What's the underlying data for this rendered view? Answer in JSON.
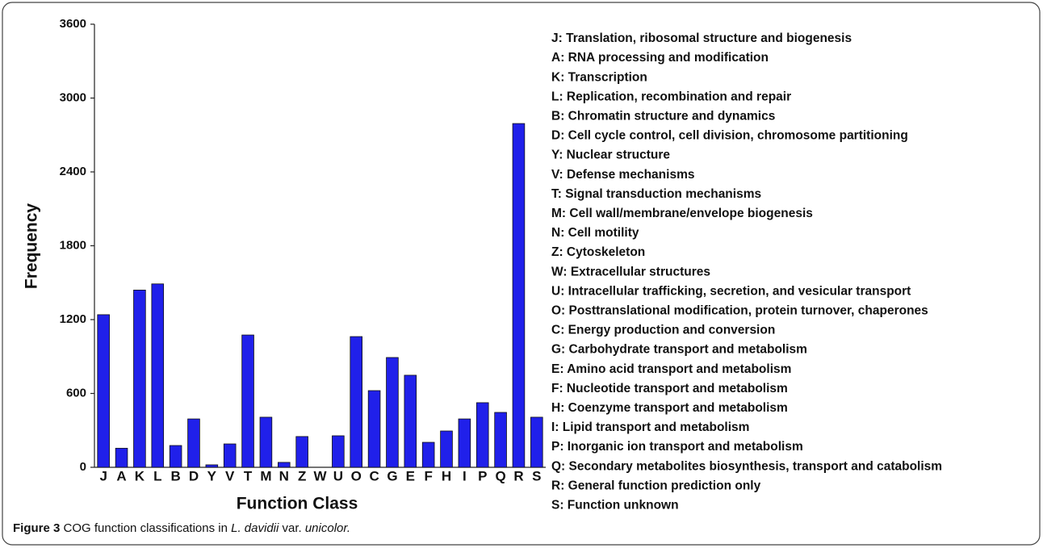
{
  "chart_data": {
    "type": "bar",
    "ylabel": "Frequency",
    "xlabel": "Function Class",
    "categories": [
      "J",
      "A",
      "K",
      "L",
      "B",
      "D",
      "Y",
      "V",
      "T",
      "M",
      "N",
      "Z",
      "W",
      "U",
      "O",
      "C",
      "G",
      "E",
      "F",
      "H",
      "I",
      "P",
      "Q",
      "R",
      "S"
    ],
    "values": [
      1240,
      155,
      1440,
      1490,
      177,
      393,
      20,
      190,
      1075,
      407,
      40,
      250,
      0,
      256,
      1062,
      623,
      892,
      748,
      203,
      295,
      393,
      525,
      446,
      2793,
      407
    ],
    "color": "#2020ea",
    "ylim": [
      0,
      3600
    ],
    "yticks": [
      0,
      600,
      1200,
      1800,
      2400,
      3000,
      3600
    ],
    "grid": false,
    "class_descriptions": [
      "J: Translation, ribosomal structure and biogenesis",
      "A: RNA processing and modification",
      "K: Transcription",
      "L: Replication, recombination and repair",
      "B: Chromatin structure and dynamics",
      "D: Cell cycle control, cell division, chromosome partitioning",
      "Y: Nuclear structure",
      "V: Defense mechanisms",
      "T: Signal transduction mechanisms",
      "M: Cell wall/membrane/envelope biogenesis",
      "N: Cell motility",
      "Z: Cytoskeleton",
      "W: Extracellular structures",
      "U: Intracellular trafficking, secretion, and vesicular transport",
      "O: Posttranslational modification, protein turnover, chaperones",
      "C: Energy production and conversion",
      "G: Carbohydrate transport and metabolism",
      "E: Amino acid transport and metabolism",
      "F: Nucleotide transport and metabolism",
      "H: Coenzyme transport and metabolism",
      "I: Lipid transport and metabolism",
      "P: Inorganic ion transport and metabolism",
      "Q: Secondary metabolites biosynthesis, transport and catabolism",
      "R: General function prediction only",
      "S: Function unknown"
    ]
  },
  "caption": {
    "label": "Figure 3",
    "parts": [
      " COG function classifications in ",
      "L. davidii",
      " var. ",
      "unicolor."
    ]
  }
}
